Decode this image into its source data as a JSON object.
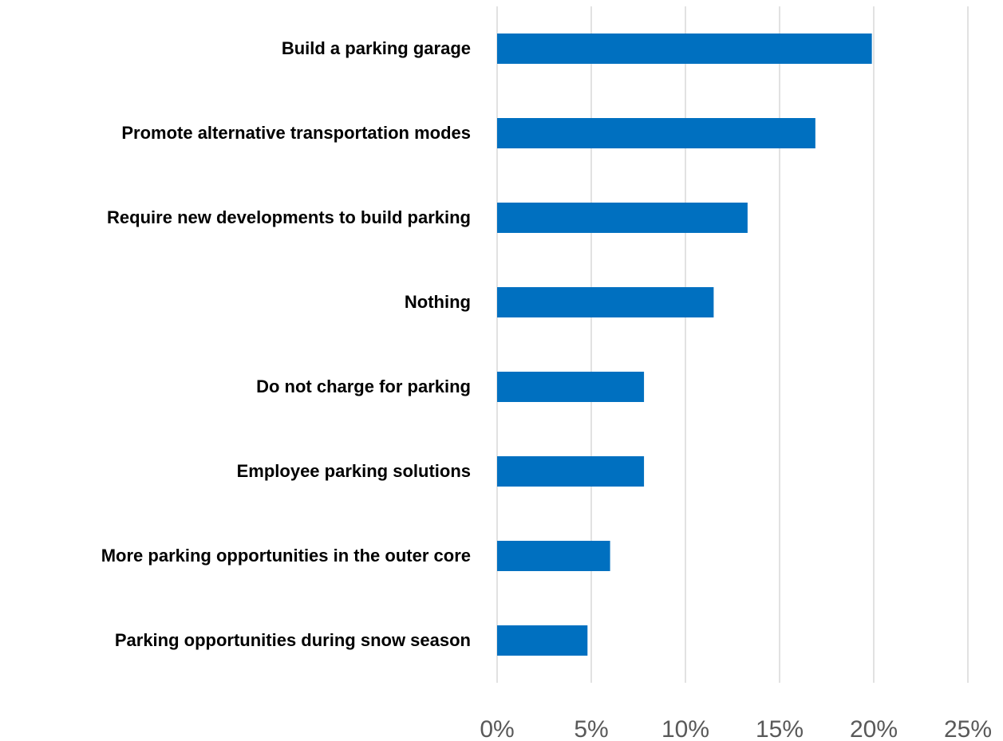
{
  "chart_data": {
    "type": "barh",
    "categories": [
      "Build a parking garage",
      "Promote alternative transportation modes",
      "Require new developments to build parking",
      "Nothing",
      "Do not charge for parking",
      "Employee parking solutions",
      "More parking opportunities in the outer core",
      "Parking opportunities during snow season"
    ],
    "values": [
      19.9,
      16.9,
      13.3,
      11.5,
      7.8,
      7.8,
      6.0,
      4.8
    ],
    "color": "#0070c0",
    "xlim": [
      0,
      25
    ],
    "xticks": [
      {
        "value": 0,
        "label": "0%"
      },
      {
        "value": 5,
        "label": "5%"
      },
      {
        "value": 10,
        "label": "10%"
      },
      {
        "value": 15,
        "label": "15%"
      },
      {
        "value": 20,
        "label": "20%"
      },
      {
        "value": 25,
        "label": "25%"
      }
    ],
    "grid": true
  }
}
